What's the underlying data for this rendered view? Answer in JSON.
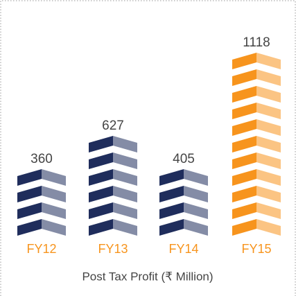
{
  "chart_data": {
    "type": "chevron-bar",
    "x_label": "Post Tax Profit (₹ Million)",
    "categories": [
      "FY12",
      "FY13",
      "FY14",
      "FY15"
    ],
    "values": [
      360,
      627,
      405,
      1118
    ],
    "colors": [
      "#1f2d5c",
      "#1f2d5c",
      "#1f2d5c",
      "#f7941d"
    ],
    "category_color": "#f7941d"
  }
}
